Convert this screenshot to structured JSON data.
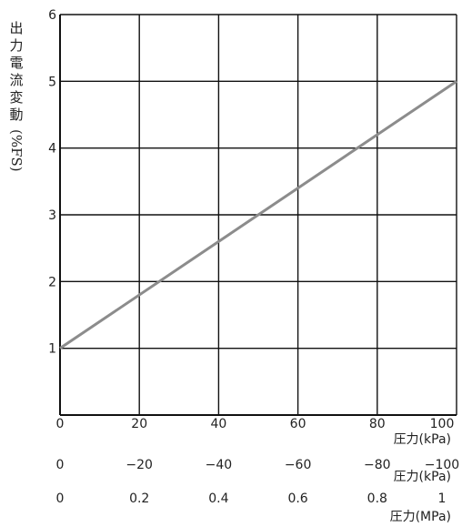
{
  "chart_data": {
    "type": "line",
    "ylabel": "出力電流変動",
    "ylabel_unit": "(%FS)",
    "y_ticks": [
      "1",
      "2",
      "3",
      "4",
      "5",
      "6"
    ],
    "ylim": [
      0,
      6
    ],
    "grid": true,
    "x_axes": [
      {
        "ticks": [
          "0",
          "20",
          "40",
          "60",
          "80",
          "100"
        ],
        "label": "圧力(kPa)"
      },
      {
        "ticks": [
          "0",
          "−20",
          "−40",
          "−60",
          "−80",
          "−100"
        ],
        "label": "圧力(kPa)"
      },
      {
        "ticks": [
          "0",
          "0.2",
          "0.4",
          "0.6",
          "0.8",
          "1"
        ],
        "label": "圧力(MPa)"
      }
    ],
    "xlim": [
      0,
      100
    ],
    "series": [
      {
        "x": [
          0,
          100
        ],
        "y": [
          1,
          5
        ]
      }
    ],
    "line_color": "#8c8c8c"
  }
}
